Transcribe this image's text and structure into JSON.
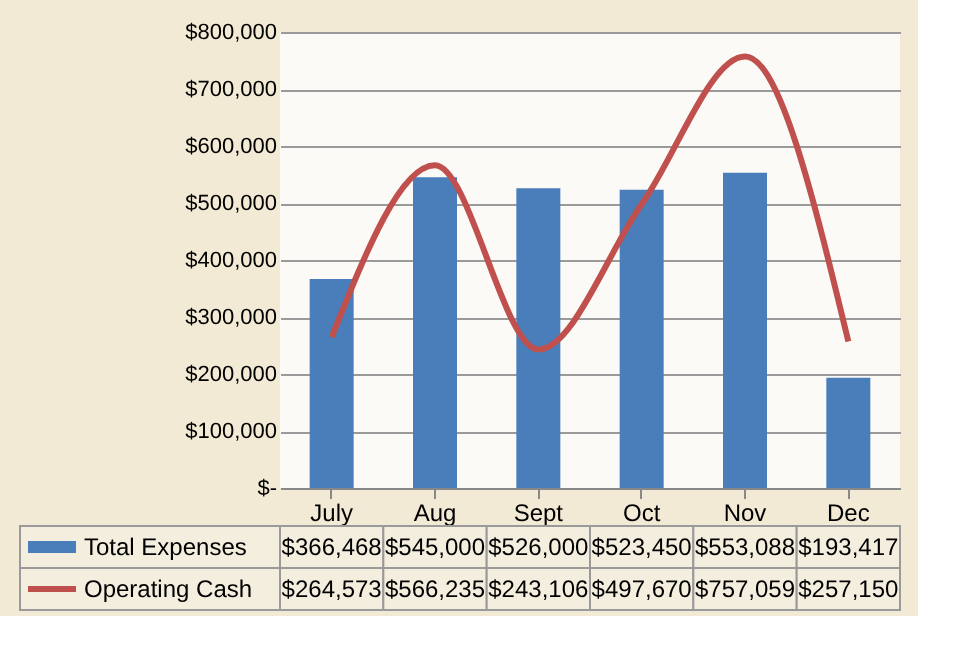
{
  "chart_data": {
    "type": "bar",
    "categories": [
      "July",
      "Aug",
      "Sept",
      "Oct",
      "Nov",
      "Dec"
    ],
    "series": [
      {
        "name": "Total Expenses",
        "color": "#4a7ebb",
        "values": [
          366468,
          545000,
          526000,
          523450,
          553088,
          193417
        ],
        "value_labels": [
          "$366,468",
          "$545,000",
          "$526,000",
          "$523,450",
          "$553,088",
          "$193,417"
        ]
      },
      {
        "name": "Operating Cash",
        "type": "line",
        "color": "#c0504d",
        "values": [
          264573,
          566235,
          243106,
          497670,
          757059,
          257150
        ],
        "value_labels": [
          "$264,573",
          "$566,235",
          "$243,106",
          "$497,670",
          "$757,059",
          "$257,150"
        ]
      }
    ],
    "ylim": [
      0,
      800000
    ],
    "yticks": [
      {
        "value": 0,
        "label": "$-"
      },
      {
        "value": 100000,
        "label": "$100,000"
      },
      {
        "value": 200000,
        "label": "$200,000"
      },
      {
        "value": 300000,
        "label": "$300,000"
      },
      {
        "value": 400000,
        "label": "$400,000"
      },
      {
        "value": 500000,
        "label": "$500,000"
      },
      {
        "value": 600000,
        "label": "$600,000"
      },
      {
        "value": 700000,
        "label": "$700,000"
      },
      {
        "value": 800000,
        "label": "$800,000"
      }
    ],
    "grid": "y",
    "legend": "bottom",
    "marker": "none",
    "line_style": "solid"
  }
}
